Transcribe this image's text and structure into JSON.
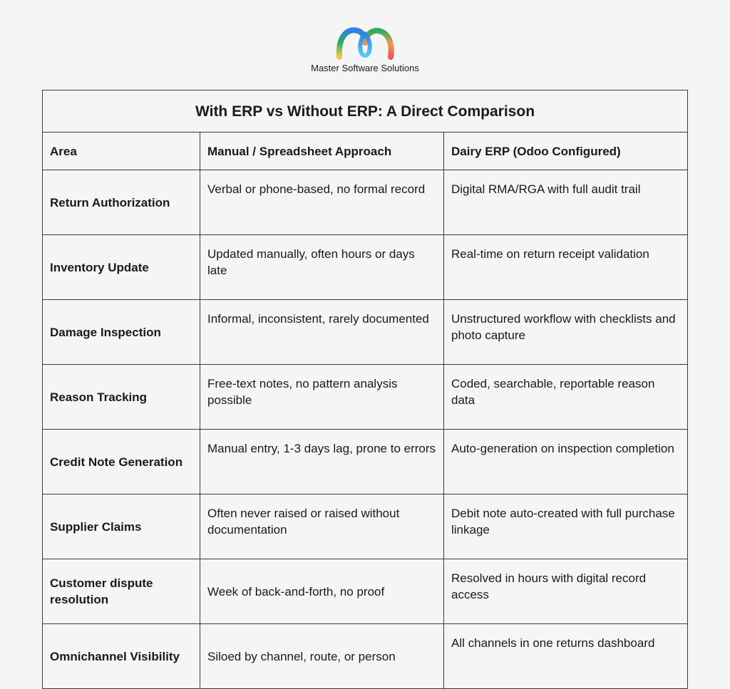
{
  "brand": {
    "name": "Master Software Solutions",
    "logo_icon": "mss-logo-icon",
    "logo_colors": [
      "#2f80ed",
      "#27ae60",
      "#f2c94c",
      "#f2994a",
      "#eb5757"
    ]
  },
  "table": {
    "title": "With ERP vs Without ERP: A Direct Comparison",
    "headers": [
      "Area",
      "Manual / Spreadsheet Approach",
      "Dairy ERP (Odoo Configured)"
    ],
    "rows": [
      {
        "area": "Return Authorization",
        "manual": "Verbal or phone-based, no formal record",
        "erp": "Digital RMA/RGA with full audit trail"
      },
      {
        "area": "Inventory Update",
        "manual": "Updated manually, often hours or days late",
        "erp": "Real-time on return receipt validation"
      },
      {
        "area": "Damage Inspection",
        "manual": "Informal, inconsistent, rarely documented",
        "erp": "Unstructured workflow with checklists and photo capture"
      },
      {
        "area": "Reason Tracking",
        "manual": "Free-text notes, no pattern analysis possible",
        "erp": "Coded, searchable, reportable reason data"
      },
      {
        "area": "Credit Note Generation",
        "manual": "Manual entry, 1-3 days lag, prone to errors",
        "erp": "Auto-generation on inspection completion"
      },
      {
        "area": "Supplier Claims",
        "manual": "Often never raised or raised without documentation",
        "erp": "Debit note auto-created with full purchase linkage"
      },
      {
        "area": "Customer dispute resolution",
        "manual": "Week of back-and-forth, no proof",
        "erp": "Resolved in hours with digital record access"
      },
      {
        "area": "Omnichannel Visibility",
        "manual": "Siloed by channel, route, or person",
        "erp": "All channels in one returns dashboard"
      }
    ]
  }
}
